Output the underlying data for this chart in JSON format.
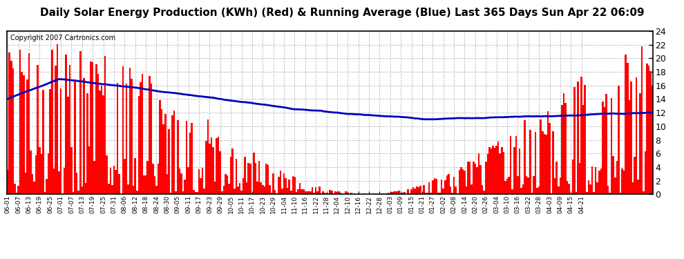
{
  "title": "Daily Solar Energy Production (KWh) (Red) & Running Average (Blue) Last 365 Days Sun Apr 22 06:09",
  "copyright": "Copyright 2007 Cartronics.com",
  "ylim": [
    0.0,
    24.0
  ],
  "yticks": [
    0.0,
    2.0,
    4.0,
    6.0,
    8.0,
    10.0,
    12.0,
    14.0,
    16.0,
    18.0,
    20.0,
    22.0,
    24.0
  ],
  "bar_color": "#FF0000",
  "line_color": "#0000BB",
  "bg_color": "#FFFFFF",
  "grid_color": "#AAAAAA",
  "title_fontsize": 11,
  "copyright_fontsize": 7,
  "x_labels": [
    "06-01",
    "06-07",
    "06-13",
    "06-19",
    "06-25",
    "07-01",
    "07-07",
    "07-13",
    "07-19",
    "07-25",
    "07-31",
    "08-06",
    "08-12",
    "08-18",
    "08-24",
    "08-30",
    "09-05",
    "09-11",
    "09-17",
    "09-23",
    "09-29",
    "10-05",
    "10-11",
    "10-17",
    "10-23",
    "10-29",
    "11-04",
    "11-10",
    "11-16",
    "11-22",
    "11-28",
    "12-04",
    "12-10",
    "12-16",
    "12-22",
    "12-28",
    "01-03",
    "01-09",
    "01-15",
    "01-21",
    "01-27",
    "02-02",
    "02-08",
    "02-14",
    "02-20",
    "02-26",
    "03-04",
    "03-10",
    "03-16",
    "03-22",
    "03-28",
    "04-03",
    "04-09",
    "04-15",
    "04-21"
  ],
  "n_days": 365,
  "seed": 42,
  "month_start": {
    "06": 0,
    "07": 30,
    "08": 61,
    "09": 92,
    "10": 122,
    "11": 153,
    "12": 183,
    "01": 214,
    "02": 245,
    "03": 273,
    "04": 304
  }
}
